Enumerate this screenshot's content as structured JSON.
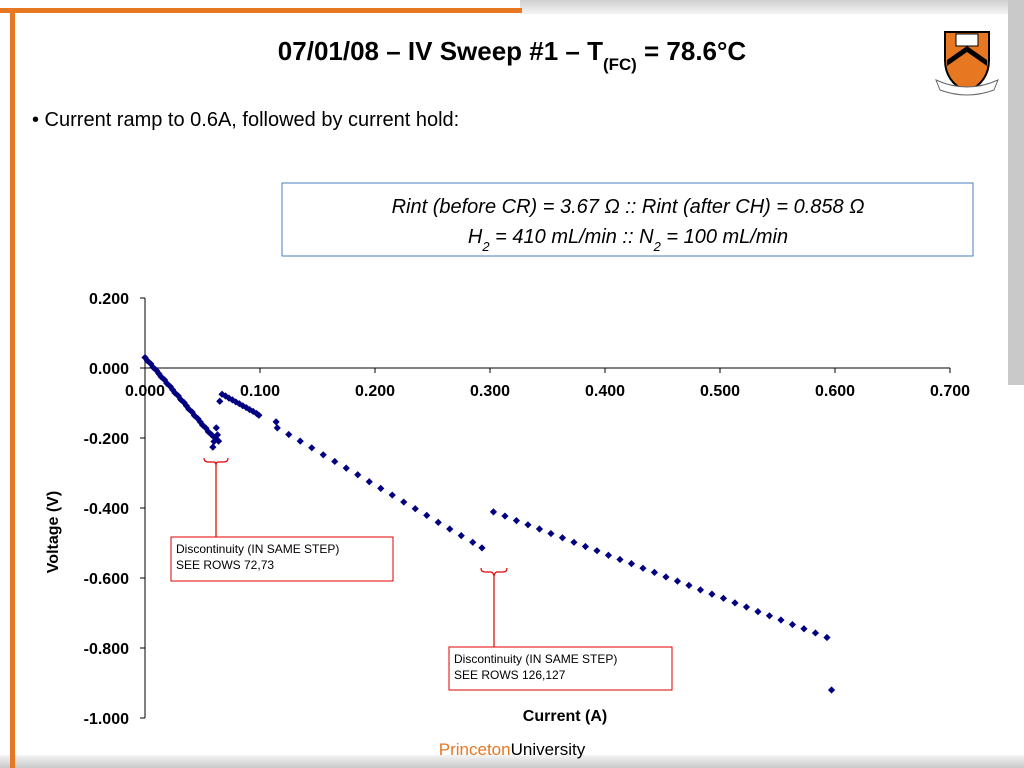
{
  "slide": {
    "title": [
      {
        "text": "07/01/08 – IV Sweep #1 – T"
      },
      {
        "text": "(FC)",
        "sub": true
      },
      {
        "text": " = 78.6°C"
      }
    ],
    "bullet": "• Current ramp to 0.6A, followed by current hold:",
    "info": [
      [
        {
          "text": "Rint (before CR) = 3.67 Ω :: Rint (after CH) = 0.858 Ω"
        }
      ],
      [
        {
          "text": "H"
        },
        {
          "text": "2",
          "sub": true
        },
        {
          "text": " = 410 mL/min :: N"
        },
        {
          "text": "2",
          "sub": true
        },
        {
          "text": " = 100 mL/min"
        }
      ]
    ],
    "footer": [
      "Princeton",
      "University"
    ]
  },
  "chart_data": {
    "type": "scatter",
    "x_label": "Current (A)",
    "y_label": "Voltage (V)",
    "color": "#000080",
    "xlim": [
      0,
      0.7
    ],
    "ylim": [
      -1,
      0.2
    ],
    "xticks": [
      {
        "value": 0,
        "label": "0.000"
      },
      {
        "value": 0.1,
        "label": "0.100"
      },
      {
        "value": 0.2,
        "label": "0.200"
      },
      {
        "value": 0.3,
        "label": "0.300"
      },
      {
        "value": 0.4,
        "label": "0.400"
      },
      {
        "value": 0.5,
        "label": "0.500"
      },
      {
        "value": 0.6,
        "label": "0.600"
      },
      {
        "value": 0.7,
        "label": "0.700"
      }
    ],
    "yticks": [
      {
        "value": 0.2,
        "label": "0.200"
      },
      {
        "value": 0,
        "label": "0.000"
      },
      {
        "value": -0.2,
        "label": "-0.200"
      },
      {
        "value": -0.4,
        "label": "-0.400"
      },
      {
        "value": -0.6,
        "label": "-0.600"
      },
      {
        "value": -0.8,
        "label": "-0.800"
      },
      {
        "value": -1,
        "label": "-1.000"
      }
    ],
    "x": [
      0.0,
      0.002,
      0.005,
      0.007,
      0.01,
      0.012,
      0.014,
      0.017,
      0.019,
      0.022,
      0.024,
      0.026,
      0.029,
      0.031,
      0.034,
      0.036,
      0.038,
      0.041,
      0.043,
      0.046,
      0.048,
      0.05,
      0.053,
      0.055,
      0.058,
      0.059,
      0.06,
      0.061,
      0.062,
      0.063,
      0.064,
      0.065,
      0.067,
      0.07,
      0.073,
      0.076,
      0.079,
      0.082,
      0.085,
      0.088,
      0.091,
      0.094,
      0.097,
      0.099,
      0.114,
      0.115,
      0.125,
      0.135,
      0.145,
      0.155,
      0.165,
      0.175,
      0.185,
      0.195,
      0.205,
      0.215,
      0.225,
      0.235,
      0.245,
      0.255,
      0.265,
      0.275,
      0.285,
      0.293,
      0.303,
      0.313,
      0.323,
      0.333,
      0.343,
      0.353,
      0.363,
      0.373,
      0.383,
      0.393,
      0.403,
      0.413,
      0.423,
      0.433,
      0.443,
      0.453,
      0.463,
      0.473,
      0.483,
      0.493,
      0.503,
      0.513,
      0.523,
      0.533,
      0.543,
      0.553,
      0.563,
      0.573,
      0.583,
      0.593,
      0.597
    ],
    "values": [
      0.03,
      0.021,
      0.012,
      0.002,
      -0.007,
      -0.016,
      -0.025,
      -0.034,
      -0.044,
      -0.053,
      -0.062,
      -0.071,
      -0.08,
      -0.09,
      -0.099,
      -0.108,
      -0.117,
      -0.126,
      -0.136,
      -0.145,
      -0.154,
      -0.163,
      -0.172,
      -0.182,
      -0.191,
      -0.226,
      -0.21,
      -0.2,
      -0.171,
      -0.191,
      -0.209,
      -0.095,
      -0.075,
      -0.08,
      -0.086,
      -0.091,
      -0.097,
      -0.102,
      -0.108,
      -0.113,
      -0.119,
      -0.124,
      -0.13,
      -0.135,
      -0.154,
      -0.171,
      -0.19,
      -0.209,
      -0.228,
      -0.248,
      -0.267,
      -0.286,
      -0.305,
      -0.325,
      -0.344,
      -0.363,
      -0.383,
      -0.402,
      -0.421,
      -0.441,
      -0.46,
      -0.479,
      -0.498,
      -0.514,
      -0.411,
      -0.423,
      -0.436,
      -0.448,
      -0.46,
      -0.473,
      -0.485,
      -0.498,
      -0.51,
      -0.522,
      -0.535,
      -0.547,
      -0.559,
      -0.572,
      -0.584,
      -0.597,
      -0.609,
      -0.621,
      -0.634,
      -0.646,
      -0.658,
      -0.671,
      -0.683,
      -0.696,
      -0.708,
      -0.72,
      -0.733,
      -0.745,
      -0.757,
      -0.77,
      -0.92
    ],
    "annotations": [
      [
        "Discontinuity (IN SAME STEP)",
        "SEE ROWS 72,73"
      ],
      [
        "Discontinuity (IN SAME STEP)",
        "SEE ROWS 126,127"
      ]
    ]
  }
}
